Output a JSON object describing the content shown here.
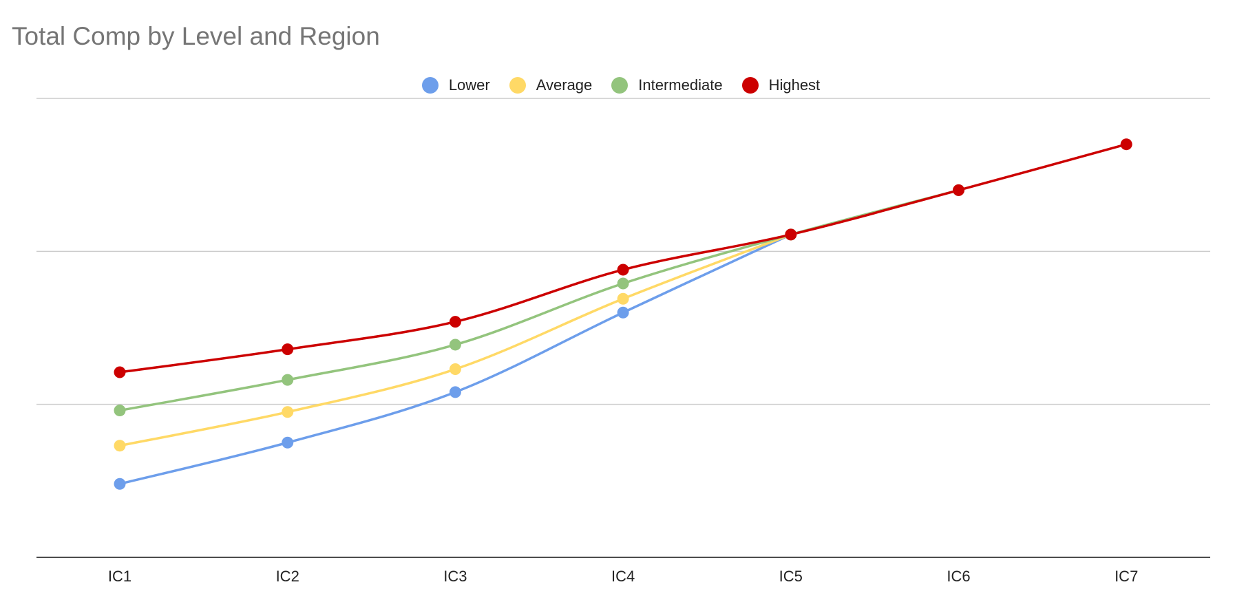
{
  "chart_data": {
    "type": "line",
    "title": "Total Comp by Level and Region",
    "xlabel": "",
    "ylabel": "",
    "categories": [
      "IC1",
      "IC2",
      "IC3",
      "IC4",
      "IC5",
      "IC6",
      "IC7"
    ],
    "ylim": [
      0,
      3
    ],
    "gridlines": [
      1,
      2,
      3
    ],
    "y_tick_labels_shown": false,
    "legend_position": "top",
    "smooth": true,
    "series": [
      {
        "name": "Lower",
        "color": "#6d9eeb",
        "values": [
          0.48,
          0.75,
          1.08,
          1.6,
          2.11,
          null,
          null
        ]
      },
      {
        "name": "Average",
        "color": "#ffd966",
        "values": [
          0.73,
          0.95,
          1.23,
          1.69,
          2.11,
          null,
          null
        ]
      },
      {
        "name": "Intermediate",
        "color": "#93c47d",
        "values": [
          0.96,
          1.16,
          1.39,
          1.79,
          2.11,
          2.4,
          null
        ]
      },
      {
        "name": "Highest",
        "color": "#cc0000",
        "values": [
          1.21,
          1.36,
          1.54,
          1.88,
          2.11,
          2.4,
          2.7
        ]
      }
    ]
  }
}
